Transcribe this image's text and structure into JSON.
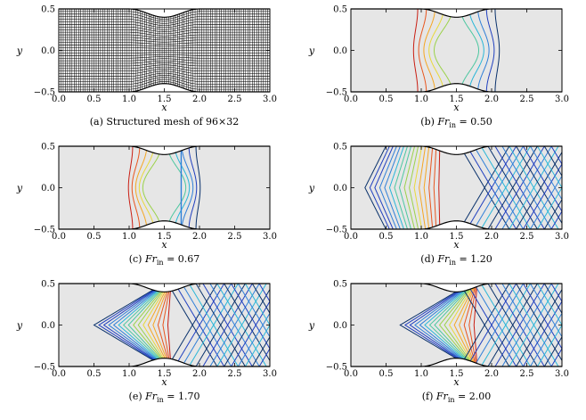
{
  "figure": {
    "panels": [
      {
        "id": "a",
        "type": "mesh",
        "caption": {
          "prefix": "(a) Structured mesh of 96×32",
          "var": "",
          "sub": "",
          "suffix": ""
        },
        "mesh": {
          "nx": 96,
          "ny": 32
        }
      },
      {
        "id": "b",
        "type": "contour",
        "fr": 0.5,
        "caption": {
          "prefix": "(b) ",
          "var": "Fr",
          "sub": "in",
          "suffix": " = 0.50"
        }
      },
      {
        "id": "c",
        "type": "contour",
        "fr": 0.67,
        "caption": {
          "prefix": "(c) ",
          "var": "Fr",
          "sub": "in",
          "suffix": " = 0.67"
        }
      },
      {
        "id": "d",
        "type": "contour",
        "fr": 1.2,
        "caption": {
          "prefix": "(d) ",
          "var": "Fr",
          "sub": "in",
          "suffix": " = 1.20"
        }
      },
      {
        "id": "e",
        "type": "contour",
        "fr": 1.7,
        "caption": {
          "prefix": "(e) ",
          "var": "Fr",
          "sub": "in",
          "suffix": " = 1.70"
        }
      },
      {
        "id": "f",
        "type": "contour",
        "fr": 2.0,
        "caption": {
          "prefix": "(f) ",
          "var": "Fr",
          "sub": "in",
          "suffix": " = 2.00"
        }
      }
    ],
    "axes": {
      "xlabel": "x",
      "ylabel": "y",
      "xlim": [
        0,
        3
      ],
      "ylim": [
        -0.5,
        0.5
      ],
      "xticks": [
        "0.0",
        "0.5",
        "1.0",
        "1.5",
        "2.0",
        "2.5",
        "3.0"
      ],
      "yticks": [
        "−0.5",
        "0.0",
        "0.5"
      ]
    },
    "channel": {
      "bump_start": 1.0,
      "bump_end": 2.0,
      "bump_height": 0.1
    },
    "colors": {
      "background": "#e6e6e6",
      "mesh": "#000000",
      "colormap": [
        "#08306b",
        "#1f3fbf",
        "#2f7fd8",
        "#29b6d8",
        "#4cc7a0",
        "#9bd24a",
        "#e9d93a",
        "#f5a623",
        "#e8551e",
        "#c91d12"
      ]
    }
  }
}
